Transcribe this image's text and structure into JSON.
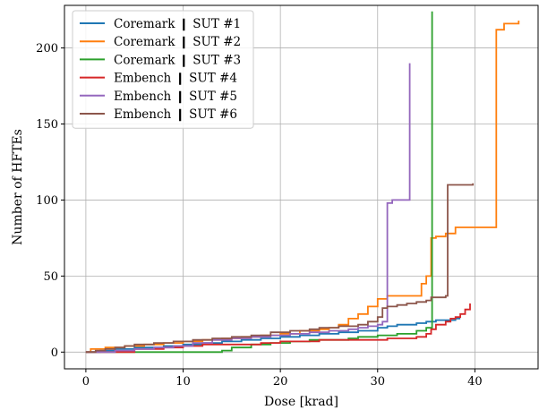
{
  "chart_data": {
    "type": "line",
    "title": "",
    "xlabel": "Dose [krad]",
    "ylabel": "Number of HFTEs",
    "xlim": [
      -2.2,
      46.5
    ],
    "ylim": [
      -11,
      228
    ],
    "xticks": [
      0,
      10,
      20,
      30,
      40
    ],
    "yticks": [
      0,
      50,
      100,
      150,
      200
    ],
    "grid": true,
    "legend_position": "top-left",
    "series": [
      {
        "name": "Coremark ❙ SUT #1",
        "color": "#1f77b4",
        "points": [
          [
            0,
            0
          ],
          [
            1,
            0
          ],
          [
            1.5,
            1
          ],
          [
            3,
            2
          ],
          [
            5,
            3
          ],
          [
            8,
            4
          ],
          [
            10,
            5
          ],
          [
            12,
            6
          ],
          [
            14,
            7
          ],
          [
            16,
            8
          ],
          [
            18,
            9
          ],
          [
            20,
            10
          ],
          [
            22,
            11
          ],
          [
            24,
            12
          ],
          [
            25,
            12
          ],
          [
            26,
            13
          ],
          [
            28,
            14
          ],
          [
            30,
            16
          ],
          [
            31,
            17
          ],
          [
            32,
            18
          ],
          [
            34,
            19
          ],
          [
            35,
            20
          ],
          [
            36,
            21
          ],
          [
            37,
            21
          ],
          [
            38,
            22
          ],
          [
            38.5,
            22
          ]
        ]
      },
      {
        "name": "Coremark ❙ SUT #2",
        "color": "#ff7f0e",
        "points": [
          [
            0,
            0
          ],
          [
            0.5,
            2
          ],
          [
            2,
            3
          ],
          [
            4,
            4
          ],
          [
            6,
            5
          ],
          [
            8,
            6
          ],
          [
            10,
            7
          ],
          [
            12,
            8
          ],
          [
            14,
            9
          ],
          [
            16,
            10
          ],
          [
            18,
            11
          ],
          [
            20,
            12
          ],
          [
            22,
            14
          ],
          [
            24,
            15
          ],
          [
            25,
            16
          ],
          [
            26,
            18
          ],
          [
            27,
            22
          ],
          [
            28,
            25
          ],
          [
            29,
            30
          ],
          [
            30,
            35
          ],
          [
            31,
            37
          ],
          [
            34,
            37
          ],
          [
            34.5,
            45
          ],
          [
            35,
            50
          ],
          [
            35.5,
            75
          ],
          [
            36,
            76
          ],
          [
            37,
            76
          ],
          [
            37,
            78
          ],
          [
            38,
            78
          ],
          [
            38,
            82
          ],
          [
            42.2,
            82
          ],
          [
            42.2,
            212
          ],
          [
            43,
            212
          ],
          [
            43,
            216
          ],
          [
            44.5,
            218
          ]
        ]
      },
      {
        "name": "Coremark ❙ SUT #3",
        "color": "#2ca02c",
        "points": [
          [
            0,
            0
          ],
          [
            14,
            0
          ],
          [
            14,
            1
          ],
          [
            15,
            3
          ],
          [
            17,
            5
          ],
          [
            19,
            6
          ],
          [
            21,
            7
          ],
          [
            23,
            8
          ],
          [
            27,
            9
          ],
          [
            28,
            10
          ],
          [
            29,
            10
          ],
          [
            30,
            11
          ],
          [
            31,
            11
          ],
          [
            32,
            12
          ],
          [
            33,
            12
          ],
          [
            34,
            14
          ],
          [
            35,
            16
          ],
          [
            35.6,
            18
          ],
          [
            35.6,
            224
          ]
        ]
      },
      {
        "name": "Embench ❙ SUT #4",
        "color": "#d62728",
        "points": [
          [
            0,
            0
          ],
          [
            5,
            2
          ],
          [
            8,
            3
          ],
          [
            10,
            4
          ],
          [
            12,
            5
          ],
          [
            14,
            5
          ],
          [
            16,
            5
          ],
          [
            18,
            6
          ],
          [
            20,
            7
          ],
          [
            22,
            7
          ],
          [
            24,
            8
          ],
          [
            30,
            8
          ],
          [
            31,
            9
          ],
          [
            34,
            10
          ],
          [
            35,
            12
          ],
          [
            35.5,
            15
          ],
          [
            36,
            18
          ],
          [
            37,
            20
          ],
          [
            37.5,
            22
          ],
          [
            38,
            23
          ],
          [
            38.5,
            25
          ],
          [
            39,
            28
          ],
          [
            39.5,
            32
          ]
        ]
      },
      {
        "name": "Embench ❙ SUT #5",
        "color": "#9467bd",
        "points": [
          [
            0,
            0
          ],
          [
            3,
            1
          ],
          [
            5,
            2
          ],
          [
            7,
            3
          ],
          [
            9,
            4
          ],
          [
            11,
            6
          ],
          [
            13,
            8
          ],
          [
            15,
            9
          ],
          [
            17,
            10
          ],
          [
            19,
            11
          ],
          [
            21,
            12
          ],
          [
            23,
            13
          ],
          [
            25,
            14
          ],
          [
            27,
            15
          ],
          [
            28,
            16
          ],
          [
            29,
            17
          ],
          [
            30,
            18
          ],
          [
            30.5,
            20
          ],
          [
            31,
            98
          ],
          [
            31.5,
            100
          ],
          [
            33.3,
            101
          ],
          [
            33.3,
            190
          ]
        ]
      },
      {
        "name": "Embench ❙ SUT #6",
        "color": "#8c564b",
        "points": [
          [
            0,
            0
          ],
          [
            1,
            1
          ],
          [
            2,
            2
          ],
          [
            3,
            3
          ],
          [
            4,
            4
          ],
          [
            5,
            5
          ],
          [
            7,
            6
          ],
          [
            9,
            7
          ],
          [
            11,
            8
          ],
          [
            13,
            9
          ],
          [
            15,
            10
          ],
          [
            17,
            11
          ],
          [
            19,
            13
          ],
          [
            21,
            14
          ],
          [
            23,
            15
          ],
          [
            24,
            16
          ],
          [
            26,
            17
          ],
          [
            28,
            18
          ],
          [
            29,
            20
          ],
          [
            30,
            23
          ],
          [
            30.5,
            29
          ],
          [
            31,
            30
          ],
          [
            32,
            31
          ],
          [
            33,
            32
          ],
          [
            34,
            33
          ],
          [
            35,
            34
          ],
          [
            35.5,
            36
          ],
          [
            37,
            37
          ],
          [
            37.2,
            110
          ],
          [
            39.8,
            110
          ],
          [
            39.8,
            111
          ]
        ]
      }
    ]
  }
}
